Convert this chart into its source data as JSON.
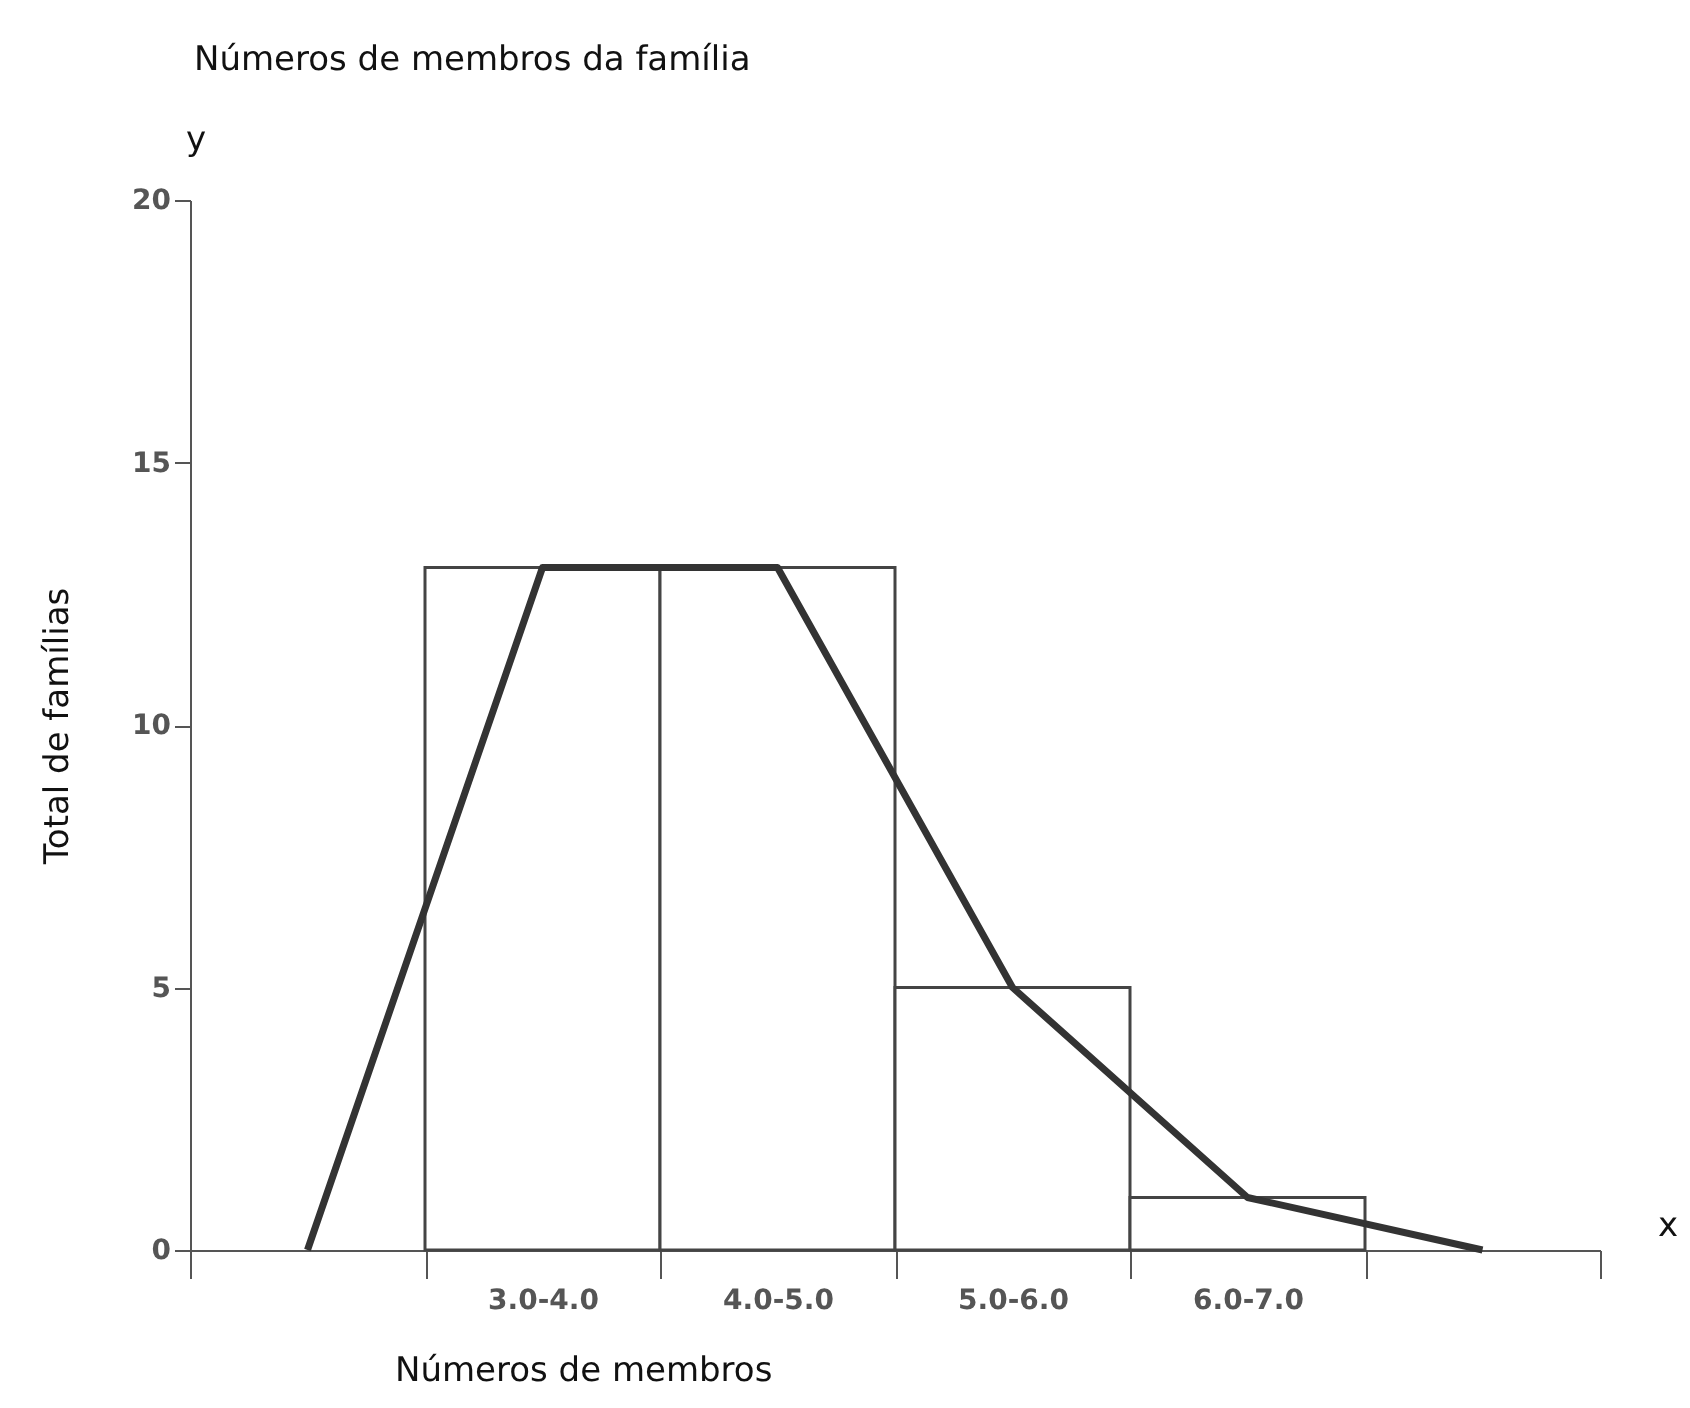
{
  "chart_data": {
    "type": "bar",
    "title": "Números de membros da família",
    "xlabel": "Números de membros",
    "ylabel": "Total de famílias",
    "annotations": [
      "y",
      "x"
    ],
    "categories": [
      null,
      "3.0-4.0",
      "4.0-5.0",
      "5.0-6.0",
      "6.0-7.0",
      null
    ],
    "values": [
      null,
      13,
      13,
      5,
      1,
      null
    ],
    "color": "#ffffff",
    "series": [
      {
        "type": "line",
        "values": [
          0,
          13,
          13,
          5,
          1,
          0
        ],
        "color": "#333333"
      }
    ],
    "ylim": [
      0,
      20
    ],
    "yticks": [
      0,
      5,
      10,
      15,
      20
    ]
  }
}
